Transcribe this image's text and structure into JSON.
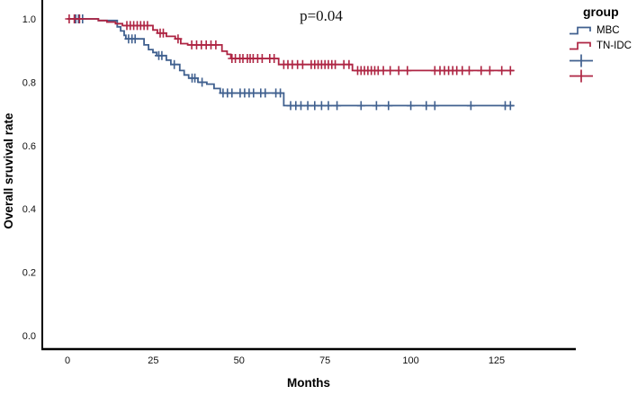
{
  "figure": {
    "p_value_label": "p=0.04",
    "x_axis_title": "Months",
    "y_axis_title": "Overall sruvival rate"
  },
  "legend": {
    "title": "group",
    "items": [
      {
        "label": "MBC",
        "type": "step-line",
        "color": "#40608F"
      },
      {
        "label": "TN-IDC",
        "type": "step-line",
        "color": "#AE2543"
      },
      {
        "label": "",
        "type": "censor-plus",
        "color": "#40608F"
      },
      {
        "label": "",
        "type": "censor-plus",
        "color": "#AE2543"
      }
    ]
  },
  "colors": {
    "mbc_blue": "#40608F",
    "tnidc_red": "#AE2543",
    "axis_black": "#000000"
  },
  "chart_data": {
    "type": "line",
    "subtype": "kaplan-meier-step",
    "title": "",
    "xlabel": "Months",
    "ylabel": "Overall sruvival rate",
    "annotation": "p=0.04",
    "legend_position": "top-right",
    "grid": false,
    "xlim": [
      -7,
      148
    ],
    "ylim": [
      -0.04,
      1.05
    ],
    "x_ticks": [
      0,
      25,
      50,
      75,
      100,
      125
    ],
    "y_ticks": [
      0.0,
      0.2,
      0.4,
      0.6,
      0.8,
      1.0
    ],
    "series": [
      {
        "name": "MBC",
        "color": "#40608F",
        "points": [
          [
            0,
            1.0
          ],
          [
            9,
            0.995
          ],
          [
            14.5,
            0.975
          ],
          [
            15.5,
            0.962
          ],
          [
            16.5,
            0.948
          ],
          [
            17,
            0.937
          ],
          [
            22.3,
            0.918
          ],
          [
            23.6,
            0.903
          ],
          [
            24.9,
            0.894
          ],
          [
            26,
            0.884
          ],
          [
            28.8,
            0.87
          ],
          [
            30.1,
            0.856
          ],
          [
            32.7,
            0.837
          ],
          [
            34,
            0.823
          ],
          [
            35.3,
            0.813
          ],
          [
            38,
            0.8
          ],
          [
            40.6,
            0.794
          ],
          [
            42.7,
            0.78
          ],
          [
            44.5,
            0.766
          ],
          [
            63,
            0.726
          ],
          [
            130,
            0.726
          ]
        ],
        "censors": [
          [
            2.4,
            1.0
          ],
          [
            3.2,
            1.0
          ],
          [
            4.4,
            1.0
          ],
          [
            17.8,
            0.937
          ],
          [
            18.8,
            0.937
          ],
          [
            19.7,
            0.937
          ],
          [
            26.6,
            0.884
          ],
          [
            27.5,
            0.884
          ],
          [
            31.1,
            0.856
          ],
          [
            36.3,
            0.813
          ],
          [
            37.1,
            0.813
          ],
          [
            39.2,
            0.8
          ],
          [
            45.3,
            0.766
          ],
          [
            46.6,
            0.766
          ],
          [
            47.9,
            0.766
          ],
          [
            50.3,
            0.766
          ],
          [
            51.6,
            0.766
          ],
          [
            52.9,
            0.766
          ],
          [
            54.2,
            0.766
          ],
          [
            56.3,
            0.766
          ],
          [
            57.6,
            0.766
          ],
          [
            60.7,
            0.766
          ],
          [
            62,
            0.766
          ],
          [
            65,
            0.726
          ],
          [
            66.5,
            0.726
          ],
          [
            68,
            0.726
          ],
          [
            70,
            0.726
          ],
          [
            72,
            0.726
          ],
          [
            74,
            0.726
          ],
          [
            76,
            0.726
          ],
          [
            78.5,
            0.726
          ],
          [
            85.5,
            0.726
          ],
          [
            90,
            0.726
          ],
          [
            93.5,
            0.726
          ],
          [
            100,
            0.726
          ],
          [
            104.5,
            0.726
          ],
          [
            107,
            0.726
          ],
          [
            117.5,
            0.726
          ],
          [
            127.5,
            0.726
          ],
          [
            129,
            0.726
          ]
        ]
      },
      {
        "name": "TN-IDC",
        "color": "#AE2543",
        "points": [
          [
            0,
            1.0
          ],
          [
            9,
            0.995
          ],
          [
            11.5,
            0.99
          ],
          [
            14,
            0.985
          ],
          [
            16,
            0.979
          ],
          [
            24.9,
            0.965
          ],
          [
            26.2,
            0.955
          ],
          [
            28.8,
            0.945
          ],
          [
            31.4,
            0.937
          ],
          [
            33,
            0.922
          ],
          [
            35,
            0.918
          ],
          [
            45,
            0.898
          ],
          [
            46.5,
            0.888
          ],
          [
            47.6,
            0.875
          ],
          [
            61.5,
            0.856
          ],
          [
            83,
            0.837
          ],
          [
            130,
            0.837
          ]
        ],
        "censors": [
          [
            0.5,
            1.0
          ],
          [
            2,
            1.0
          ],
          [
            3.5,
            1.0
          ],
          [
            17.3,
            0.979
          ],
          [
            18.3,
            0.979
          ],
          [
            19.3,
            0.979
          ],
          [
            20.3,
            0.979
          ],
          [
            21.3,
            0.979
          ],
          [
            22.3,
            0.979
          ],
          [
            23.3,
            0.979
          ],
          [
            27,
            0.955
          ],
          [
            27.9,
            0.955
          ],
          [
            32.2,
            0.937
          ],
          [
            36.2,
            0.918
          ],
          [
            37.6,
            0.918
          ],
          [
            39,
            0.918
          ],
          [
            40.4,
            0.918
          ],
          [
            41.8,
            0.918
          ],
          [
            43.2,
            0.918
          ],
          [
            47.9,
            0.875
          ],
          [
            48.9,
            0.875
          ],
          [
            50.2,
            0.875
          ],
          [
            51.1,
            0.875
          ],
          [
            52.4,
            0.875
          ],
          [
            53.2,
            0.875
          ],
          [
            54.1,
            0.875
          ],
          [
            55.4,
            0.875
          ],
          [
            56.7,
            0.875
          ],
          [
            58.9,
            0.875
          ],
          [
            60.2,
            0.875
          ],
          [
            63,
            0.856
          ],
          [
            64.2,
            0.856
          ],
          [
            65.5,
            0.856
          ],
          [
            67,
            0.856
          ],
          [
            68.5,
            0.856
          ],
          [
            71,
            0.856
          ],
          [
            72,
            0.856
          ],
          [
            73,
            0.856
          ],
          [
            74,
            0.856
          ],
          [
            75,
            0.856
          ],
          [
            76,
            0.856
          ],
          [
            77,
            0.856
          ],
          [
            78,
            0.856
          ],
          [
            80.5,
            0.856
          ],
          [
            82,
            0.856
          ],
          [
            84.5,
            0.837
          ],
          [
            85.5,
            0.837
          ],
          [
            86.5,
            0.837
          ],
          [
            87.5,
            0.837
          ],
          [
            88.5,
            0.837
          ],
          [
            89.5,
            0.837
          ],
          [
            90.5,
            0.837
          ],
          [
            92,
            0.837
          ],
          [
            94,
            0.837
          ],
          [
            96.5,
            0.837
          ],
          [
            99,
            0.837
          ],
          [
            107,
            0.837
          ],
          [
            108.5,
            0.837
          ],
          [
            109.8,
            0.837
          ],
          [
            111,
            0.837
          ],
          [
            112.2,
            0.837
          ],
          [
            113.4,
            0.837
          ],
          [
            115,
            0.837
          ],
          [
            117,
            0.837
          ],
          [
            120.5,
            0.837
          ],
          [
            123,
            0.837
          ],
          [
            126.5,
            0.837
          ],
          [
            129,
            0.837
          ]
        ]
      }
    ]
  }
}
